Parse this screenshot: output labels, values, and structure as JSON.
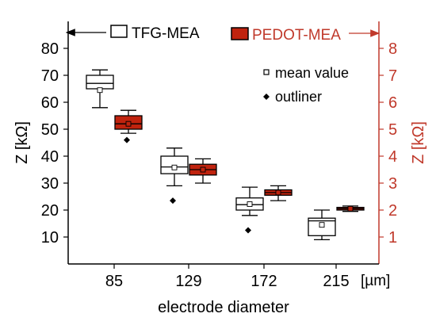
{
  "chart_data": {
    "type": "box",
    "categories": [
      "85",
      "129",
      "172",
      "215"
    ],
    "x_unit": "[µm]",
    "xlabel": "electrode diameter",
    "left_axis": {
      "label": "Z [kΩ]",
      "range": [
        0,
        90
      ],
      "ticks": [
        10,
        20,
        30,
        40,
        50,
        60,
        70,
        80
      ],
      "color": "#000000"
    },
    "right_axis": {
      "label": "Z [kΩ]",
      "range": [
        0,
        9
      ],
      "ticks": [
        1,
        2,
        3,
        4,
        5,
        6,
        7,
        8
      ],
      "color": "#c0392b"
    },
    "series": [
      {
        "name": "TFG-MEA",
        "axis": "left",
        "fill": "#ffffff",
        "stroke": "#000000",
        "arrow": "left",
        "boxes": [
          {
            "category": "85",
            "whisker_low": 58,
            "q1": 65,
            "median": 67,
            "q3": 70,
            "whisker_high": 72,
            "mean": 64.5,
            "outliers": []
          },
          {
            "category": "129",
            "whisker_low": 29,
            "q1": 33.5,
            "median": 36,
            "q3": 40,
            "whisker_high": 43,
            "mean": 35.8,
            "outliers": [
              23.5
            ]
          },
          {
            "category": "172",
            "whisker_low": 18,
            "q1": 20,
            "median": 22,
            "q3": 24.5,
            "whisker_high": 28.5,
            "mean": 22.2,
            "outliers": [
              12.5
            ]
          },
          {
            "category": "215",
            "whisker_low": 9,
            "q1": 10.5,
            "median": 16,
            "q3": 17,
            "whisker_high": 20,
            "mean": 14.5,
            "outliers": []
          }
        ]
      },
      {
        "name": "PEDOT-MEA",
        "axis": "right",
        "fill": "#c0230e",
        "stroke": "#000000",
        "arrow": "right",
        "boxes": [
          {
            "category": "85",
            "whisker_low": 4.85,
            "q1": 5.0,
            "median": 5.2,
            "q3": 5.5,
            "whisker_high": 5.7,
            "mean": 5.2,
            "outliers": [
              4.6
            ]
          },
          {
            "category": "129",
            "whisker_low": 3.0,
            "q1": 3.3,
            "median": 3.5,
            "q3": 3.7,
            "whisker_high": 3.9,
            "mean": 3.5,
            "outliers": []
          },
          {
            "category": "172",
            "whisker_low": 2.35,
            "q1": 2.55,
            "median": 2.65,
            "q3": 2.75,
            "whisker_high": 2.9,
            "mean": 2.65,
            "outliers": []
          },
          {
            "category": "215",
            "whisker_low": 1.95,
            "q1": 2.0,
            "median": 2.05,
            "q3": 2.1,
            "whisker_high": 2.15,
            "mean": 2.05,
            "outliers": []
          }
        ]
      }
    ],
    "legend": [
      {
        "symbol": "open-square",
        "label": "mean value"
      },
      {
        "symbol": "diamond",
        "label": "outliner"
      }
    ],
    "legend_position": "top-right",
    "grid": false
  }
}
